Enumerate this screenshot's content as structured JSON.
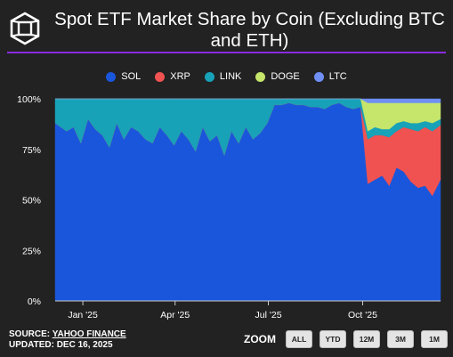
{
  "chart_data": {
    "type": "area",
    "stacked": true,
    "percent": true,
    "title": "Spot ETF Market Share by Coin (Excluding BTC and ETH)",
    "ylim": [
      0,
      100
    ],
    "y_ticks": [
      "0%",
      "25%",
      "50%",
      "75%",
      "100%"
    ],
    "x_ticks": [
      "Jan '25",
      "Apr '25",
      "Jul '25",
      "Oct '25"
    ],
    "x_range": [
      "2024-12-05",
      "2025-12-16"
    ],
    "legend_position": "top",
    "grid": false,
    "sampling": "weekly-average",
    "x": [
      "2024-12-09",
      "2024-12-16",
      "2024-12-23",
      "2024-12-30",
      "2025-01-06",
      "2025-01-13",
      "2025-01-20",
      "2025-01-27",
      "2025-02-03",
      "2025-02-10",
      "2025-02-17",
      "2025-02-24",
      "2025-03-03",
      "2025-03-10",
      "2025-03-17",
      "2025-03-24",
      "2025-03-31",
      "2025-04-07",
      "2025-04-14",
      "2025-04-21",
      "2025-04-28",
      "2025-05-05",
      "2025-05-12",
      "2025-05-19",
      "2025-05-26",
      "2025-06-02",
      "2025-06-09",
      "2025-06-16",
      "2025-06-23",
      "2025-06-30",
      "2025-07-07",
      "2025-07-14",
      "2025-07-21",
      "2025-07-28",
      "2025-08-04",
      "2025-08-11",
      "2025-08-18",
      "2025-08-25",
      "2025-09-01",
      "2025-09-08",
      "2025-09-15",
      "2025-09-22",
      "2025-09-29",
      "2025-10-06",
      "2025-10-13",
      "2025-10-20",
      "2025-10-27",
      "2025-11-03",
      "2025-11-10",
      "2025-11-17",
      "2025-11-24",
      "2025-12-01",
      "2025-12-08",
      "2025-12-15"
    ],
    "series": [
      {
        "name": "SOL",
        "color": "#1a56db",
        "values": [
          88,
          84,
          86,
          78,
          90,
          85,
          82,
          76,
          88,
          80,
          86,
          84,
          80,
          78,
          86,
          82,
          77,
          84,
          80,
          74,
          86,
          79,
          82,
          72,
          84,
          78,
          86,
          80,
          83,
          88,
          97,
          97,
          98,
          97,
          97,
          96,
          96,
          95,
          97,
          98,
          96,
          95,
          96,
          58,
          60,
          62,
          57,
          66,
          64,
          59,
          56,
          57,
          52,
          60
        ]
      },
      {
        "name": "XRP",
        "color": "#f05252",
        "values": [
          0,
          0,
          0,
          0,
          0,
          0,
          0,
          0,
          0,
          0,
          0,
          0,
          0,
          0,
          0,
          0,
          0,
          0,
          0,
          0,
          0,
          0,
          0,
          0,
          0,
          0,
          0,
          0,
          0,
          0,
          0,
          0,
          0,
          0,
          0,
          0,
          0,
          0,
          0,
          0,
          0,
          0,
          0,
          22,
          22,
          20,
          24,
          18,
          22,
          26,
          28,
          29,
          32,
          27
        ]
      },
      {
        "name": "LINK",
        "color": "#17a2b8",
        "values": [
          12,
          16,
          14,
          22,
          10,
          15,
          18,
          24,
          12,
          20,
          14,
          16,
          20,
          22,
          14,
          18,
          23,
          16,
          20,
          26,
          14,
          21,
          18,
          28,
          16,
          22,
          14,
          20,
          17,
          12,
          3,
          3,
          2,
          3,
          3,
          4,
          4,
          5,
          3,
          2,
          4,
          5,
          4,
          4,
          4,
          3,
          4,
          4,
          3,
          3,
          4,
          3,
          4,
          3
        ]
      },
      {
        "name": "DOGE",
        "color": "#c5e56b",
        "values": [
          0,
          0,
          0,
          0,
          0,
          0,
          0,
          0,
          0,
          0,
          0,
          0,
          0,
          0,
          0,
          0,
          0,
          0,
          0,
          0,
          0,
          0,
          0,
          0,
          0,
          0,
          0,
          0,
          0,
          0,
          0,
          0,
          0,
          0,
          0,
          0,
          0,
          0,
          0,
          0,
          0,
          0,
          0,
          14,
          12,
          13,
          13,
          10,
          9,
          10,
          10,
          9,
          10,
          8
        ]
      },
      {
        "name": "LTC",
        "color": "#6f8ff5",
        "values": [
          0,
          0,
          0,
          0,
          0,
          0,
          0,
          0,
          0,
          0,
          0,
          0,
          0,
          0,
          0,
          0,
          0,
          0,
          0,
          0,
          0,
          0,
          0,
          0,
          0,
          0,
          0,
          0,
          0,
          0,
          0,
          0,
          0,
          0,
          0,
          0,
          0,
          0,
          0,
          0,
          0,
          0,
          0,
          2,
          2,
          2,
          2,
          2,
          2,
          2,
          2,
          2,
          2,
          2
        ]
      }
    ]
  },
  "footer": {
    "source_prefix": "SOURCE: ",
    "source_link": "YAHOO FINANCE",
    "updated": "UPDATED: DEC 16, 2025"
  },
  "zoom": {
    "label": "ZOOM",
    "buttons": [
      "ALL",
      "YTD",
      "12M",
      "3M",
      "1M"
    ]
  },
  "colors": {
    "background": "#222222",
    "accent_line": "#8a2be2"
  }
}
